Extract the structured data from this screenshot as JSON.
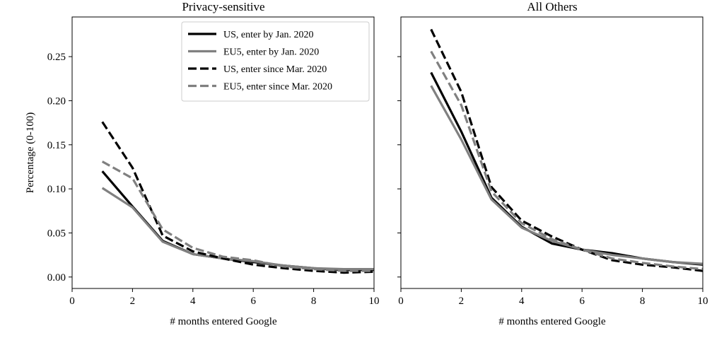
{
  "chart_data": [
    {
      "type": "line",
      "title": "Privacy-sensitive",
      "xlabel": "# months entered Google",
      "ylabel": "Percentage (0-100)",
      "xlim": [
        0,
        10
      ],
      "ylim": [
        -0.013,
        0.295
      ],
      "xticks": [
        0,
        2,
        4,
        6,
        8,
        10
      ],
      "yticks": [
        0.0,
        0.05,
        0.1,
        0.15,
        0.2,
        0.25
      ],
      "xtick_labels": [
        "0",
        "2",
        "4",
        "6",
        "8",
        "10"
      ],
      "ytick_labels": [
        "0.00",
        "0.05",
        "0.10",
        "0.15",
        "0.20",
        "0.25"
      ],
      "grid": false,
      "legend_position": "top-right",
      "series": [
        {
          "name": "US, enter by Jan. 2020",
          "color": "#000000",
          "dash": "solid",
          "x": [
            1,
            2,
            3,
            4,
            5,
            6,
            7,
            8,
            9,
            10
          ],
          "y": [
            0.12,
            0.08,
            0.041,
            0.026,
            0.021,
            0.017,
            0.013,
            0.01,
            0.008,
            0.008
          ]
        },
        {
          "name": "EU5, enter by Jan. 2020",
          "color": "#808080",
          "dash": "solid",
          "x": [
            1,
            2,
            3,
            4,
            5,
            6,
            7,
            8,
            9,
            10
          ],
          "y": [
            0.101,
            0.079,
            0.04,
            0.026,
            0.021,
            0.018,
            0.013,
            0.01,
            0.009,
            0.009
          ]
        },
        {
          "name": "US, enter since Mar. 2020",
          "color": "#000000",
          "dash": "dashed",
          "x": [
            1,
            2,
            3,
            4,
            5,
            6,
            7,
            8,
            9,
            10
          ],
          "y": [
            0.176,
            0.124,
            0.047,
            0.029,
            0.021,
            0.014,
            0.01,
            0.007,
            0.005,
            0.006
          ]
        },
        {
          "name": "EU5, enter since Mar. 2020",
          "color": "#808080",
          "dash": "dashed",
          "x": [
            1,
            2,
            3,
            4,
            5,
            6,
            7,
            8,
            9,
            10
          ],
          "y": [
            0.131,
            0.112,
            0.054,
            0.033,
            0.023,
            0.019,
            0.012,
            0.009,
            0.007,
            0.007
          ]
        }
      ]
    },
    {
      "type": "line",
      "title": "All Others",
      "xlabel": "# months entered Google",
      "ylabel": "",
      "xlim": [
        0,
        10
      ],
      "ylim": [
        -0.013,
        0.295
      ],
      "xticks": [
        0,
        2,
        4,
        6,
        8,
        10
      ],
      "yticks": [
        0.0,
        0.05,
        0.1,
        0.15,
        0.2,
        0.25
      ],
      "xtick_labels": [
        "0",
        "2",
        "4",
        "6",
        "8",
        "10"
      ],
      "ytick_labels": [],
      "grid": false,
      "series": [
        {
          "name": "US, enter by Jan. 2020",
          "color": "#000000",
          "dash": "solid",
          "x": [
            1,
            2,
            3,
            4,
            5,
            6,
            7,
            8,
            9,
            10
          ],
          "y": [
            0.232,
            0.165,
            0.09,
            0.057,
            0.038,
            0.031,
            0.027,
            0.021,
            0.017,
            0.014
          ]
        },
        {
          "name": "EU5, enter by Jan. 2020",
          "color": "#808080",
          "dash": "solid",
          "x": [
            1,
            2,
            3,
            4,
            5,
            6,
            7,
            8,
            9,
            10
          ],
          "y": [
            0.217,
            0.156,
            0.088,
            0.056,
            0.041,
            0.031,
            0.025,
            0.021,
            0.017,
            0.015
          ]
        },
        {
          "name": "US, enter since Mar. 2020",
          "color": "#000000",
          "dash": "dashed",
          "x": [
            1,
            2,
            3,
            4,
            5,
            6,
            7,
            8,
            9,
            10
          ],
          "y": [
            0.281,
            0.21,
            0.102,
            0.064,
            0.046,
            0.031,
            0.019,
            0.014,
            0.011,
            0.007
          ]
        },
        {
          "name": "EU5, enter since Mar. 2020",
          "color": "#808080",
          "dash": "dashed",
          "x": [
            1,
            2,
            3,
            4,
            5,
            6,
            7,
            8,
            9,
            10
          ],
          "y": [
            0.256,
            0.195,
            0.097,
            0.061,
            0.043,
            0.031,
            0.021,
            0.016,
            0.012,
            0.009
          ]
        }
      ]
    }
  ]
}
